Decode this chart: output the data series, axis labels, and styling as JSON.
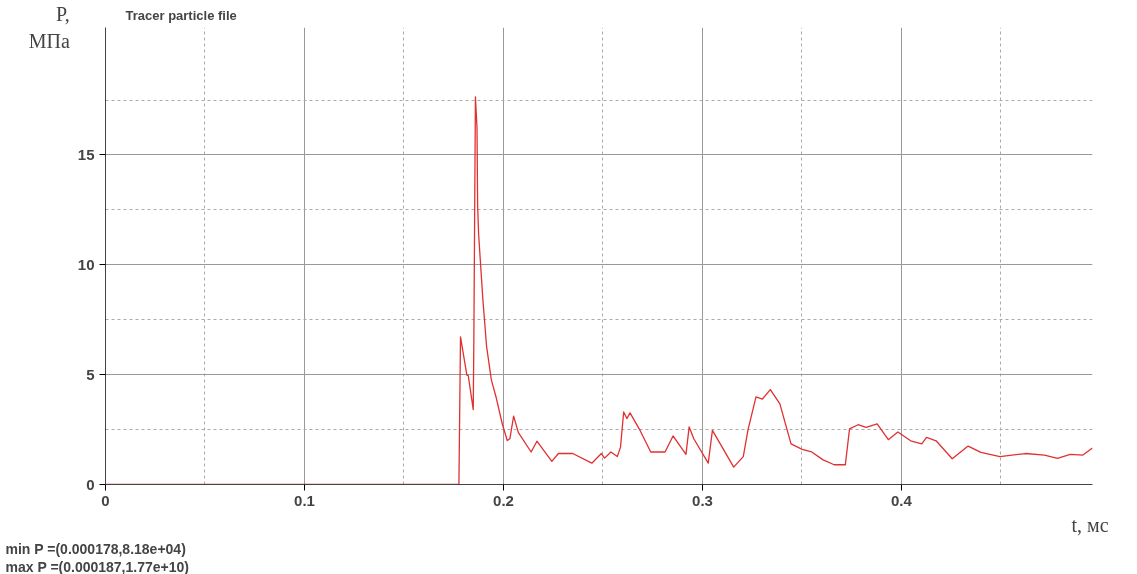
{
  "chart_data": {
    "type": "line",
    "title": "Tracer particle file",
    "xlabel": "t,  мс",
    "ylabel": "P,\nМПа",
    "annotations": [
      "min P  =(0.000178,8.18e+04)",
      "max P  =(0.000187,1.77e+10)"
    ],
    "xlim": [
      0,
      0.496
    ],
    "ylim": [
      0,
      20.8
    ],
    "xticks": [
      0,
      0.1,
      0.2,
      0.3,
      0.4
    ],
    "yticks": [
      0,
      5,
      10,
      15
    ],
    "grid": true,
    "x": [
      0,
      0.1776,
      0.1784,
      0.1816,
      0.1823,
      0.1848,
      0.1851,
      0.1859,
      0.1867,
      0.187,
      0.1875,
      0.1896,
      0.1915,
      0.1939,
      0.1963,
      0.1995,
      0.2019,
      0.2032,
      0.2051,
      0.2075,
      0.2139,
      0.2168,
      0.2243,
      0.2276,
      0.2348,
      0.2444,
      0.2492,
      0.2508,
      0.254,
      0.2572,
      0.2588,
      0.2604,
      0.262,
      0.2636,
      0.2684,
      0.274,
      0.2812,
      0.2852,
      0.2917,
      0.2933,
      0.2957,
      0.3029,
      0.305,
      0.3157,
      0.3205,
      0.3229,
      0.3269,
      0.3301,
      0.3341,
      0.3389,
      0.3445,
      0.3501,
      0.3549,
      0.3606,
      0.3662,
      0.3718,
      0.3739,
      0.3782,
      0.3822,
      0.3878,
      0.3934,
      0.3982,
      0.4046,
      0.4102,
      0.4126,
      0.4174,
      0.4255,
      0.4335,
      0.4399,
      0.4495,
      0.4623,
      0.4719,
      0.4784,
      0.4848,
      0.4912,
      0.496
    ],
    "series": [
      {
        "color": "#e03030",
        "values": [
          0,
          0,
          6.72,
          4.98,
          4.96,
          3.41,
          6.5,
          17.64,
          16.2,
          12.7,
          11.4,
          8.47,
          6.29,
          4.76,
          3.97,
          2.72,
          2.0,
          2.08,
          3.11,
          2.36,
          1.48,
          1.97,
          1.05,
          1.41,
          1.41,
          0.97,
          1.41,
          1.2,
          1.48,
          1.27,
          1.7,
          3.3,
          3.0,
          3.26,
          2.5,
          1.48,
          1.48,
          2.21,
          1.37,
          2.62,
          2.07,
          0.97,
          2.46,
          0.79,
          1.27,
          2.5,
          3.99,
          3.89,
          4.32,
          3.67,
          1.85,
          1.6,
          1.48,
          1.12,
          0.9,
          0.9,
          2.53,
          2.72,
          2.6,
          2.76,
          2.04,
          2.39,
          1.99,
          1.85,
          2.14,
          1.99,
          1.17,
          1.75,
          1.46,
          1.27,
          1.41,
          1.34,
          1.19,
          1.37,
          1.34,
          1.66
        ]
      }
    ]
  }
}
